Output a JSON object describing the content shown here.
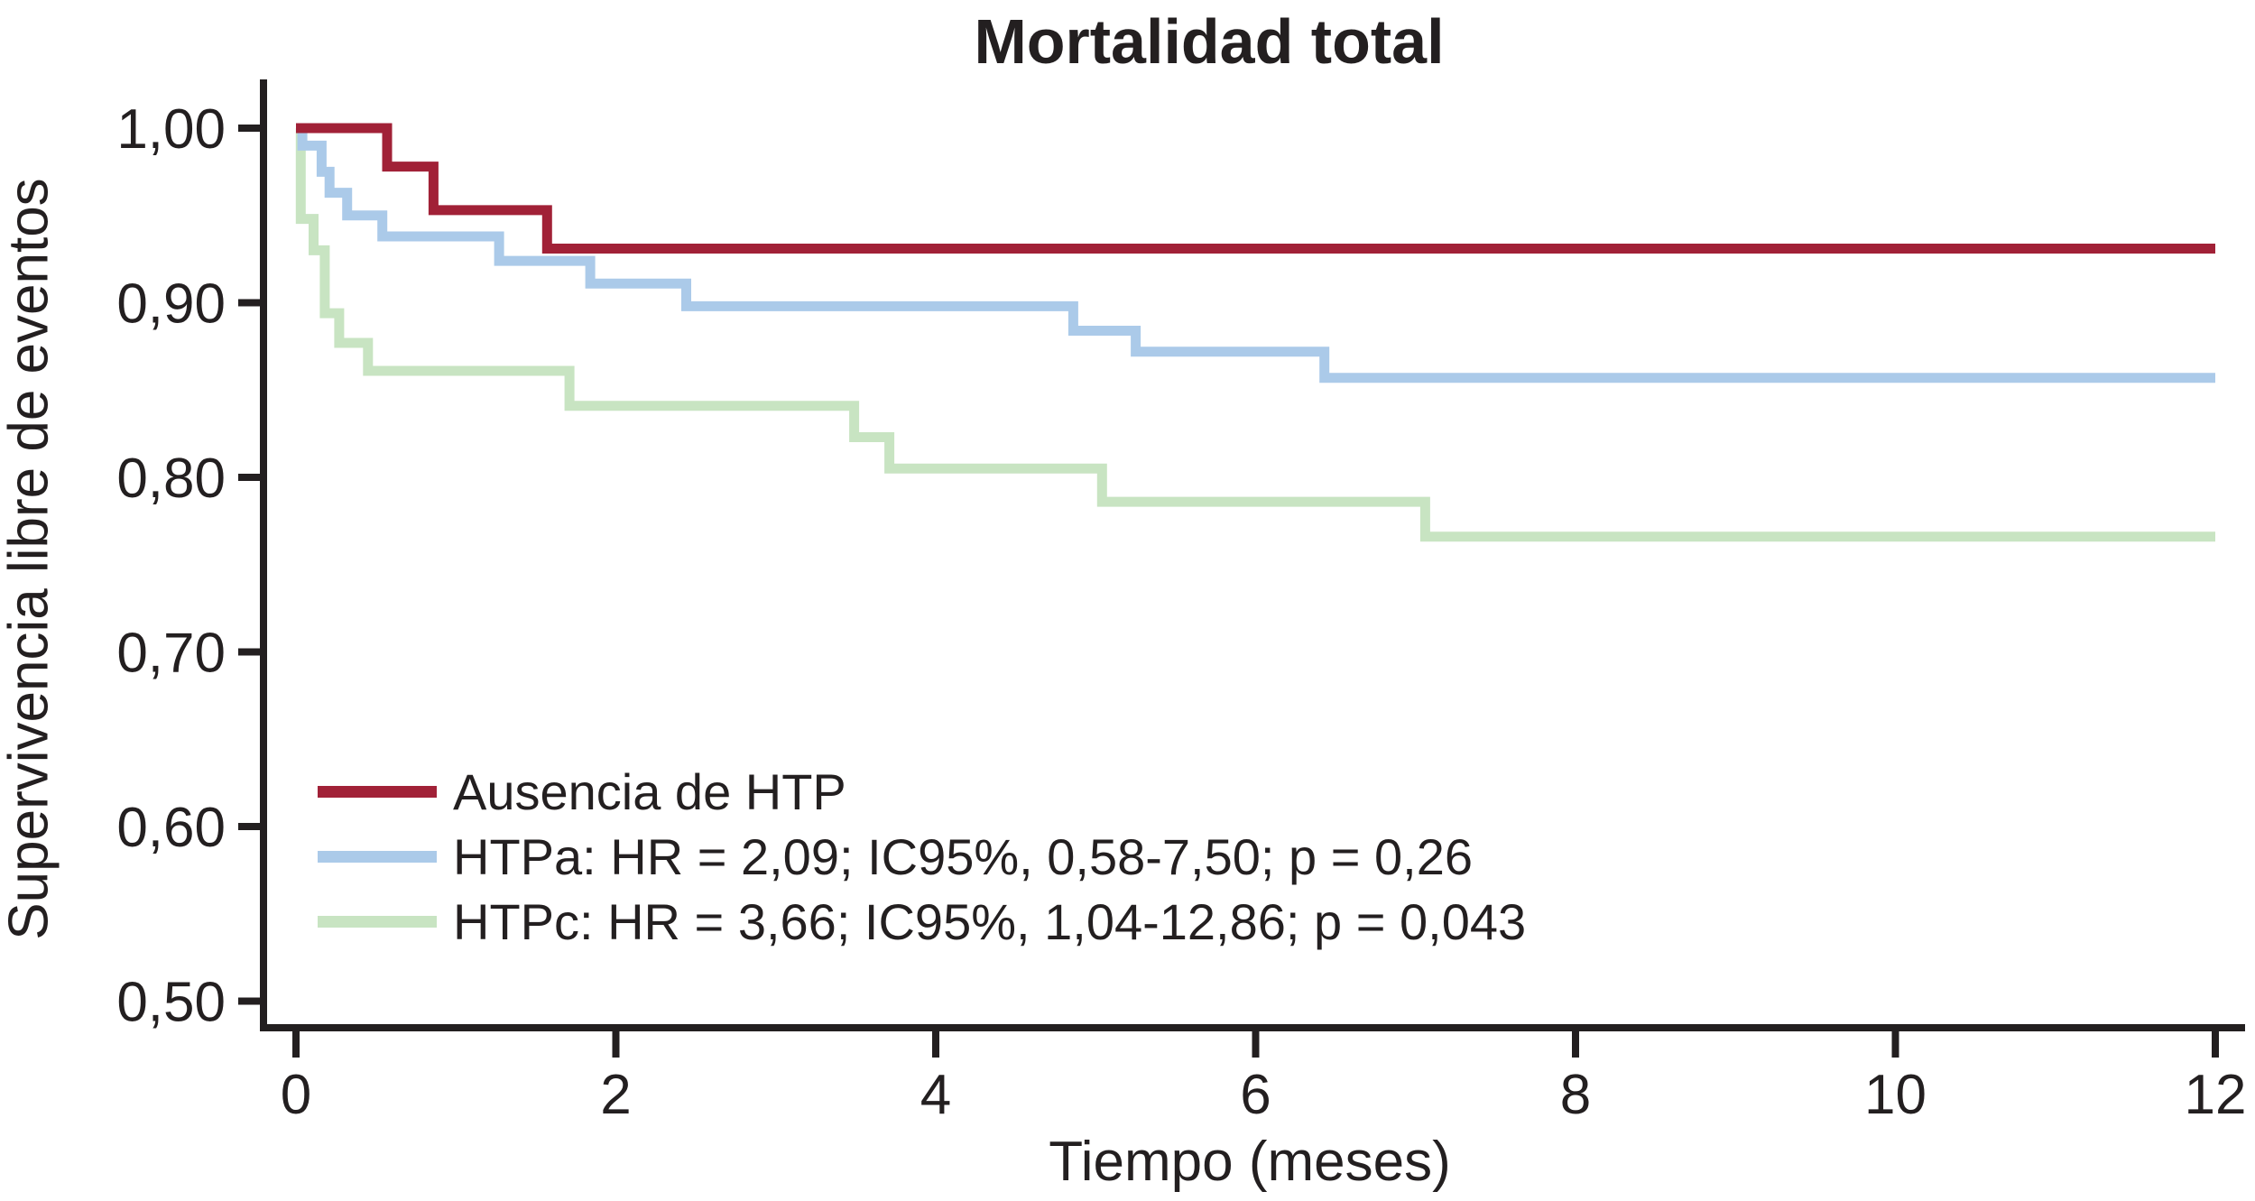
{
  "figure": {
    "title": "Mortalidad total"
  },
  "chart_data": {
    "type": "line",
    "subtype": "kaplan-meier-step",
    "title": "Mortalidad total",
    "xlabel": "Tiempo (meses)",
    "ylabel": "Supervivencia libre de eventos",
    "xlim": [
      0,
      12
    ],
    "ylim": [
      0.5,
      1.0
    ],
    "grid": false,
    "legend_position": "inside-lower-left",
    "x_ticks": [
      {
        "value": 0,
        "label": "0"
      },
      {
        "value": 2,
        "label": "2"
      },
      {
        "value": 4,
        "label": "4"
      },
      {
        "value": 6,
        "label": "6"
      },
      {
        "value": 8,
        "label": "8"
      },
      {
        "value": 10,
        "label": "10"
      },
      {
        "value": 12,
        "label": "12"
      }
    ],
    "y_ticks": [
      {
        "value": 1.0,
        "label": "1,00"
      },
      {
        "value": 0.9,
        "label": "0,90"
      },
      {
        "value": 0.8,
        "label": "0,80"
      },
      {
        "value": 0.7,
        "label": "0,70"
      },
      {
        "value": 0.6,
        "label": "0,60"
      },
      {
        "value": 0.5,
        "label": "0,50"
      }
    ],
    "axis_color": "#231f20",
    "series": [
      {
        "name": "HTPc",
        "legend_label": "HTPc: HR = 3,66; IC95%, 1,04-12,86; p = 0,043",
        "color": "#c8e4c2",
        "end_x": 12,
        "steps": [
          [
            0,
            1.0
          ],
          [
            0.03,
            0.948
          ],
          [
            0.11,
            0.93
          ],
          [
            0.18,
            0.894
          ],
          [
            0.27,
            0.877
          ],
          [
            0.45,
            0.861
          ],
          [
            1.71,
            0.841
          ],
          [
            3.49,
            0.823
          ],
          [
            3.71,
            0.805
          ],
          [
            5.04,
            0.786
          ],
          [
            7.06,
            0.766
          ]
        ]
      },
      {
        "name": "HTPa",
        "legend_label": "HTPa: HR = 2,09; IC95%, 0,58-7,50; p = 0,26",
        "color": "#abcae9",
        "end_x": 12,
        "steps": [
          [
            0,
            1.0
          ],
          [
            0.04,
            0.99
          ],
          [
            0.16,
            0.975
          ],
          [
            0.21,
            0.963
          ],
          [
            0.32,
            0.95
          ],
          [
            0.54,
            0.938
          ],
          [
            1.27,
            0.924
          ],
          [
            1.84,
            0.911
          ],
          [
            2.44,
            0.898
          ],
          [
            4.86,
            0.884
          ],
          [
            5.25,
            0.872
          ],
          [
            6.43,
            0.857
          ]
        ]
      },
      {
        "name": "Ausencia de HTP",
        "legend_label": "Ausencia de HTP",
        "color": "#a12137",
        "end_x": 12,
        "steps": [
          [
            0,
            1.0
          ],
          [
            0.57,
            0.978
          ],
          [
            0.86,
            0.953
          ],
          [
            1.57,
            0.931
          ]
        ]
      }
    ],
    "legend_order": [
      "Ausencia de HTP",
      "HTPa",
      "HTPc"
    ]
  }
}
